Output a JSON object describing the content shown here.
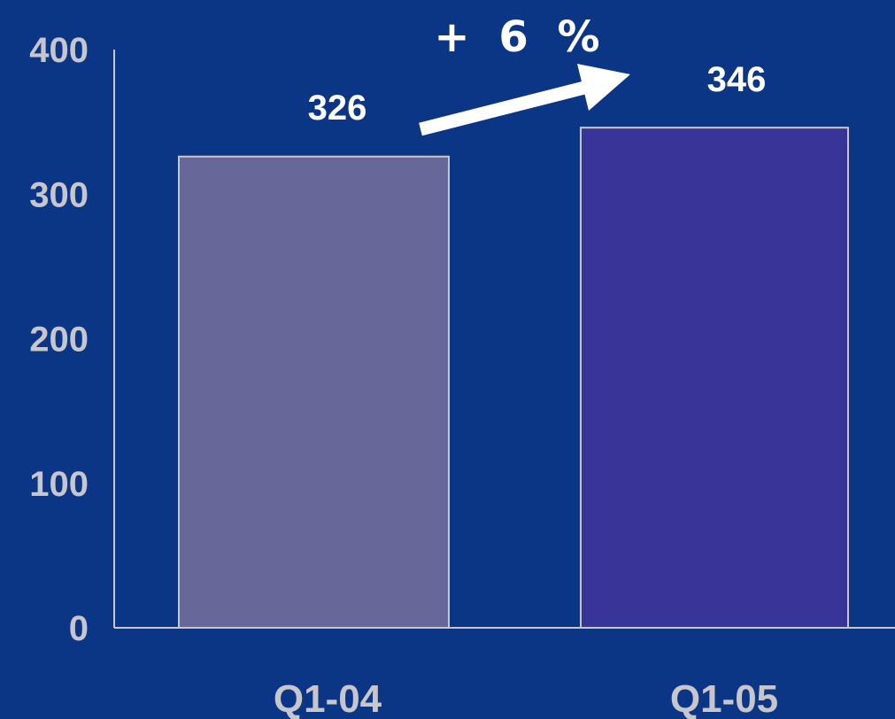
{
  "colors": {
    "background": "#0b3585",
    "axis": "#c6c6cc",
    "bar_outline": "#c6c6cc",
    "arrow": "#ffffff"
  },
  "chart_data": {
    "type": "bar",
    "title": "",
    "xlabel": "",
    "ylabel": "",
    "categories": [
      "Q1-04",
      "Q1-05"
    ],
    "values": [
      326,
      346
    ],
    "bar_colors": [
      "#67679a",
      "#393598"
    ],
    "data_labels": [
      "326",
      "346"
    ],
    "yticks": [
      "0",
      "100",
      "200",
      "300",
      "400"
    ],
    "ylim": [
      0,
      400
    ],
    "grid": false,
    "legend": "none",
    "annotation": {
      "text": "+ 6 %",
      "type": "arrow",
      "from": "Q1-04",
      "to": "Q1-05"
    }
  }
}
